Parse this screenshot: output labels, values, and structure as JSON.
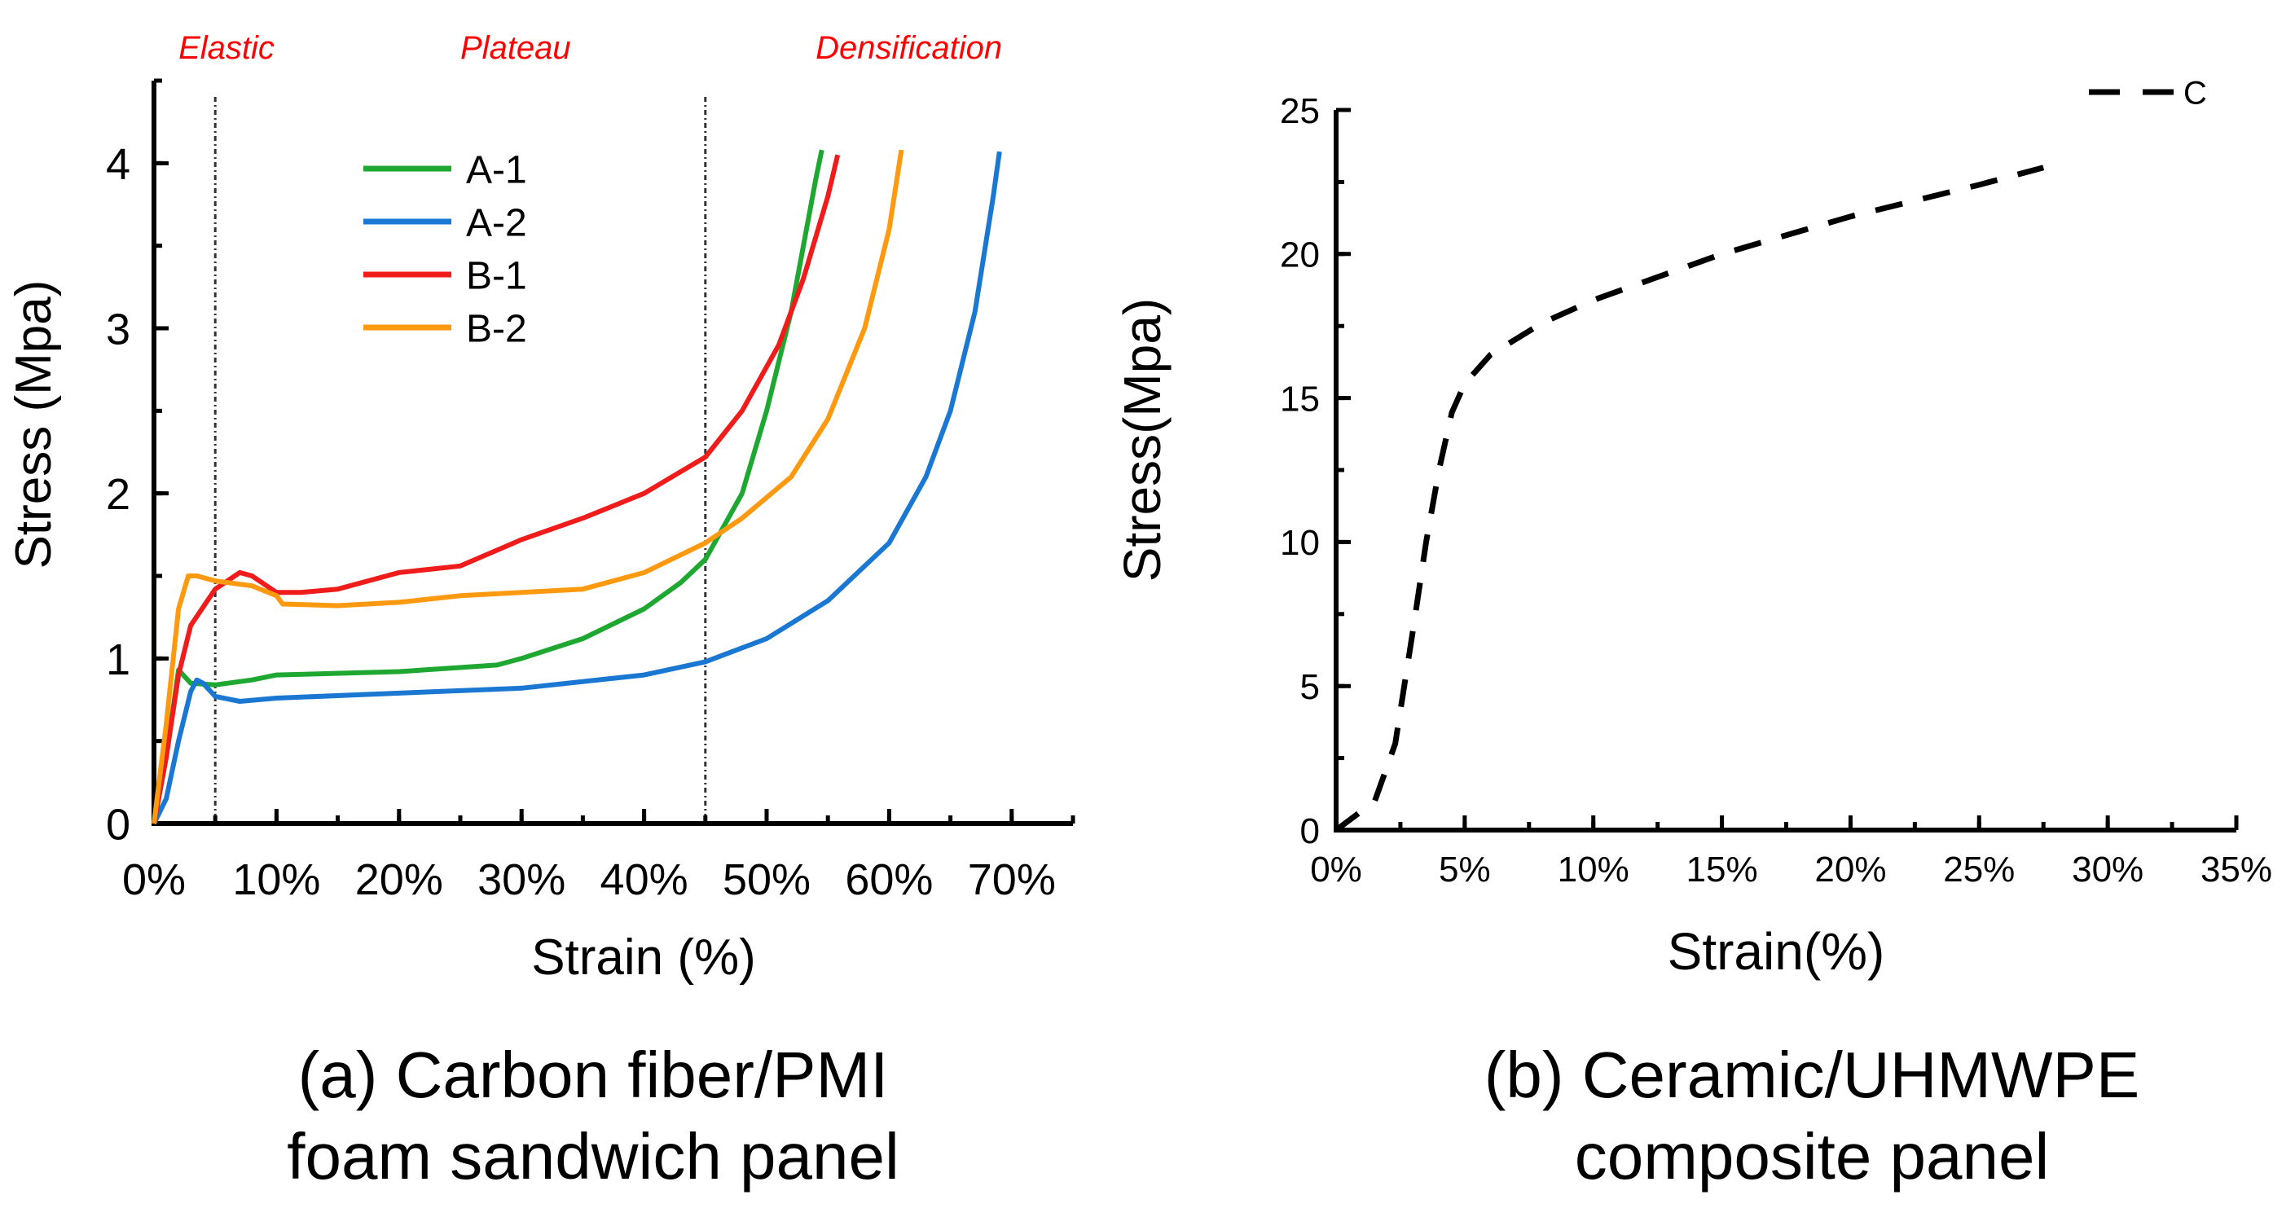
{
  "chart_data": [
    {
      "id": "a",
      "type": "line",
      "caption": [
        "(a) Carbon fiber/PMI",
        "foam sandwich panel"
      ],
      "xlabel": "Strain (%)",
      "ylabel": "Stress (Mpa)",
      "xlim": [
        0,
        75
      ],
      "ylim": [
        0,
        4.5
      ],
      "xticks": [
        0,
        10,
        20,
        30,
        40,
        50,
        60,
        70
      ],
      "xtick_labels": [
        "0%",
        "10%",
        "20%",
        "30%",
        "40%",
        "50%",
        "60%",
        "70%"
      ],
      "yticks": [
        0,
        1,
        2,
        3,
        4
      ],
      "ytick_labels": [
        "0",
        "1",
        "2",
        "3",
        "4"
      ],
      "grid": false,
      "legend_position": "top-left",
      "region_lines_x": [
        5,
        45
      ],
      "region_labels": [
        {
          "text": "Elastic",
          "x": 2
        },
        {
          "text": "Plateau",
          "x": 25
        },
        {
          "text": "Densification",
          "x": 54
        }
      ],
      "region_label_color": "#ff0000",
      "series": [
        {
          "name": "A-1",
          "color": "#1ea832",
          "dash": false,
          "x": [
            0,
            1,
            2,
            3,
            5,
            8,
            10,
            20,
            28,
            30,
            35,
            40,
            43,
            45,
            48,
            50,
            52,
            54,
            54.5
          ],
          "y": [
            0,
            0.4,
            0.93,
            0.85,
            0.84,
            0.87,
            0.9,
            0.92,
            0.96,
            1.0,
            1.12,
            1.3,
            1.46,
            1.6,
            2.0,
            2.5,
            3.1,
            3.9,
            4.08
          ]
        },
        {
          "name": "A-2",
          "color": "#1a78d2",
          "dash": false,
          "x": [
            0,
            1,
            2,
            3,
            3.5,
            4,
            5,
            7,
            10,
            20,
            30,
            40,
            45,
            50,
            55,
            60,
            63,
            65,
            67,
            68.5,
            69
          ],
          "y": [
            0,
            0.15,
            0.5,
            0.8,
            0.87,
            0.85,
            0.77,
            0.74,
            0.76,
            0.79,
            0.82,
            0.9,
            0.98,
            1.12,
            1.35,
            1.7,
            2.1,
            2.5,
            3.1,
            3.8,
            4.07
          ]
        },
        {
          "name": "B-1",
          "color": "#f01c1c",
          "dash": false,
          "x": [
            0,
            1,
            2,
            3,
            5,
            7,
            8,
            10,
            12,
            15,
            20,
            25,
            30,
            35,
            40,
            45,
            48,
            51,
            53,
            55,
            55.8
          ],
          "y": [
            0,
            0.4,
            0.9,
            1.2,
            1.42,
            1.52,
            1.5,
            1.4,
            1.4,
            1.42,
            1.52,
            1.56,
            1.72,
            1.85,
            2.0,
            2.22,
            2.5,
            2.9,
            3.3,
            3.8,
            4.05
          ]
        },
        {
          "name": "B-2",
          "color": "#ff9a10",
          "dash": false,
          "x": [
            0,
            1,
            2,
            2.8,
            3.5,
            5,
            8,
            10,
            10.5,
            15,
            20,
            25,
            30,
            35,
            40,
            45,
            48,
            52,
            55,
            58,
            60,
            61
          ],
          "y": [
            0,
            0.6,
            1.3,
            1.5,
            1.5,
            1.47,
            1.44,
            1.38,
            1.33,
            1.32,
            1.34,
            1.38,
            1.4,
            1.42,
            1.52,
            1.7,
            1.85,
            2.1,
            2.45,
            3.0,
            3.6,
            4.08
          ]
        }
      ]
    },
    {
      "id": "b",
      "type": "line",
      "caption": [
        "(b) Ceramic/UHMWPE",
        "composite panel"
      ],
      "xlabel": "Strain(%)",
      "ylabel": "Stress(Mpa)",
      "xlim": [
        0,
        35
      ],
      "ylim": [
        0,
        25
      ],
      "xticks": [
        0,
        5,
        10,
        15,
        20,
        25,
        30,
        35
      ],
      "xtick_labels": [
        "0%",
        "5%",
        "10%",
        "15%",
        "20%",
        "25%",
        "30%",
        "35%"
      ],
      "yticks": [
        0,
        5,
        10,
        15,
        20,
        25
      ],
      "ytick_labels": [
        "0",
        "5",
        "10",
        "15",
        "20",
        "25"
      ],
      "grid": false,
      "legend_position": "top-right",
      "series": [
        {
          "name": "C",
          "color": "#000000",
          "dash": true,
          "x": [
            0,
            1.5,
            2.3,
            3,
            3.5,
            4,
            4.5,
            5,
            6,
            8,
            10,
            15,
            20,
            25,
            27.5
          ],
          "y": [
            0,
            1,
            3,
            7,
            10,
            12.5,
            14.5,
            15.5,
            16.5,
            17.6,
            18.4,
            20,
            21.3,
            22.4,
            23
          ]
        }
      ]
    }
  ]
}
